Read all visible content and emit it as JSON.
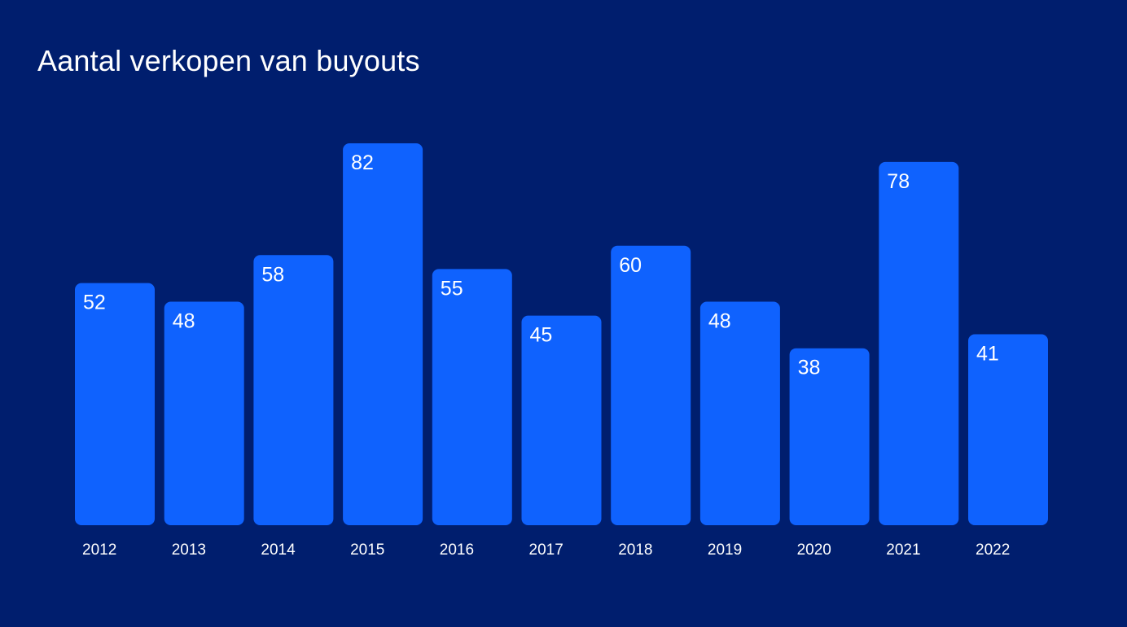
{
  "colors": {
    "background": "#001e6e",
    "bar": "#0f62fe",
    "text": "#ffffff"
  },
  "chart_data": {
    "type": "bar",
    "title": "Aantal verkopen van buyouts",
    "xlabel": "",
    "ylabel": "",
    "categories": [
      "2012",
      "2013",
      "2014",
      "2015",
      "2016",
      "2017",
      "2018",
      "2019",
      "2020",
      "2021",
      "2022"
    ],
    "values": [
      52,
      48,
      58,
      82,
      55,
      45,
      60,
      48,
      38,
      78,
      41
    ],
    "ylim": [
      0,
      82
    ],
    "grid": false,
    "legend": "none",
    "data_labels": true
  }
}
